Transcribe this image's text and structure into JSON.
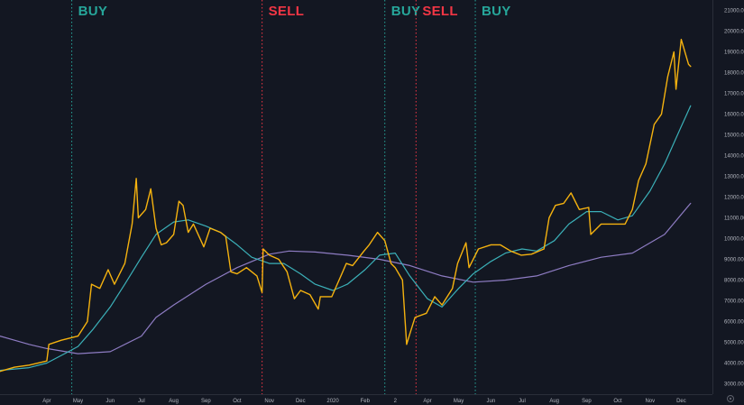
{
  "chart_data": {
    "type": "line",
    "title": "",
    "xlabel": "",
    "ylabel": "",
    "x_range": [
      "2019-02-15",
      "2020-12-31"
    ],
    "ylim": [
      2500,
      21500
    ],
    "y_ticks": [
      "3000.00",
      "4000.00",
      "5000.00",
      "6000.00",
      "7000.00",
      "8000.00",
      "9000.00",
      "10000.00",
      "11000.00",
      "12000.00",
      "13000.00",
      "14000.00",
      "15000.00",
      "16000.00",
      "17000.00",
      "18000.00",
      "19000.00",
      "20000.00",
      "21000.00"
    ],
    "x_ticks": [
      {
        "label": "Apr",
        "date": "2019-04-01"
      },
      {
        "label": "May",
        "date": "2019-05-01"
      },
      {
        "label": "Jun",
        "date": "2019-06-01"
      },
      {
        "label": "Jul",
        "date": "2019-07-01"
      },
      {
        "label": "Aug",
        "date": "2019-08-01"
      },
      {
        "label": "Sep",
        "date": "2019-09-01"
      },
      {
        "label": "Oct",
        "date": "2019-10-01"
      },
      {
        "label": "Nov",
        "date": "2019-11-01"
      },
      {
        "label": "Dec",
        "date": "2019-12-01"
      },
      {
        "label": "2020",
        "date": "2020-01-01"
      },
      {
        "label": "Feb",
        "date": "2020-02-01"
      },
      {
        "label": "2",
        "date": "2020-03-01"
      },
      {
        "label": "Apr",
        "date": "2020-04-01"
      },
      {
        "label": "May",
        "date": "2020-05-01"
      },
      {
        "label": "Jun",
        "date": "2020-06-01"
      },
      {
        "label": "Jul",
        "date": "2020-07-01"
      },
      {
        "label": "Aug",
        "date": "2020-08-01"
      },
      {
        "label": "Sep",
        "date": "2020-09-01"
      },
      {
        "label": "Oct",
        "date": "2020-10-01"
      },
      {
        "label": "Nov",
        "date": "2020-11-01"
      },
      {
        "label": "Dec",
        "date": "2020-12-01"
      }
    ],
    "grid": false,
    "legend": "none",
    "signals": [
      {
        "label": "BUY",
        "date": "2019-04-25",
        "color": "#26a69a"
      },
      {
        "label": "SELL",
        "date": "2019-10-25",
        "color": "#f23645"
      },
      {
        "label": "BUY",
        "date": "2020-02-20",
        "color": "#26a69a"
      },
      {
        "label": "SELL",
        "date": "2020-03-21",
        "color": "#f23645"
      },
      {
        "label": "BUY",
        "date": "2020-05-17",
        "color": "#26a69a"
      }
    ],
    "series": [
      {
        "color": "#f5b20f",
        "points": [
          [
            "2019-02-15",
            3600
          ],
          [
            "2019-03-01",
            3800
          ],
          [
            "2019-03-15",
            3900
          ],
          [
            "2019-04-01",
            4100
          ],
          [
            "2019-04-03",
            4900
          ],
          [
            "2019-04-15",
            5100
          ],
          [
            "2019-05-01",
            5300
          ],
          [
            "2019-05-10",
            6000
          ],
          [
            "2019-05-14",
            7800
          ],
          [
            "2019-05-22",
            7600
          ],
          [
            "2019-05-30",
            8500
          ],
          [
            "2019-06-05",
            7800
          ],
          [
            "2019-06-15",
            8800
          ],
          [
            "2019-06-22",
            10700
          ],
          [
            "2019-06-26",
            12900
          ],
          [
            "2019-06-28",
            11000
          ],
          [
            "2019-07-05",
            11400
          ],
          [
            "2019-07-10",
            12400
          ],
          [
            "2019-07-15",
            10500
          ],
          [
            "2019-07-20",
            9700
          ],
          [
            "2019-07-25",
            9800
          ],
          [
            "2019-08-01",
            10200
          ],
          [
            "2019-08-06",
            11800
          ],
          [
            "2019-08-10",
            11600
          ],
          [
            "2019-08-15",
            10300
          ],
          [
            "2019-08-20",
            10700
          ],
          [
            "2019-08-30",
            9600
          ],
          [
            "2019-09-05",
            10500
          ],
          [
            "2019-09-15",
            10300
          ],
          [
            "2019-09-20",
            10100
          ],
          [
            "2019-09-25",
            8400
          ],
          [
            "2019-10-01",
            8300
          ],
          [
            "2019-10-10",
            8600
          ],
          [
            "2019-10-20",
            8200
          ],
          [
            "2019-10-25",
            7400
          ],
          [
            "2019-10-26",
            9500
          ],
          [
            "2019-11-01",
            9200
          ],
          [
            "2019-11-10",
            9000
          ],
          [
            "2019-11-18",
            8400
          ],
          [
            "2019-11-25",
            7100
          ],
          [
            "2019-12-01",
            7500
          ],
          [
            "2019-12-10",
            7300
          ],
          [
            "2019-12-18",
            6600
          ],
          [
            "2019-12-20",
            7200
          ],
          [
            "2019-12-31",
            7200
          ],
          [
            "2020-01-07",
            8000
          ],
          [
            "2020-01-14",
            8800
          ],
          [
            "2020-01-20",
            8700
          ],
          [
            "2020-01-31",
            9400
          ],
          [
            "2020-02-05",
            9700
          ],
          [
            "2020-02-13",
            10300
          ],
          [
            "2020-02-20",
            9900
          ],
          [
            "2020-02-26",
            8800
          ],
          [
            "2020-03-01",
            8600
          ],
          [
            "2020-03-08",
            8000
          ],
          [
            "2020-03-12",
            4900
          ],
          [
            "2020-03-15",
            5400
          ],
          [
            "2020-03-20",
            6200
          ],
          [
            "2020-03-31",
            6400
          ],
          [
            "2020-04-08",
            7200
          ],
          [
            "2020-04-15",
            6800
          ],
          [
            "2020-04-25",
            7600
          ],
          [
            "2020-04-30",
            8800
          ],
          [
            "2020-05-08",
            9800
          ],
          [
            "2020-05-11",
            8600
          ],
          [
            "2020-05-20",
            9500
          ],
          [
            "2020-06-01",
            9700
          ],
          [
            "2020-06-10",
            9700
          ],
          [
            "2020-06-20",
            9400
          ],
          [
            "2020-06-30",
            9200
          ],
          [
            "2020-07-10",
            9250
          ],
          [
            "2020-07-22",
            9500
          ],
          [
            "2020-07-27",
            11000
          ],
          [
            "2020-08-02",
            11600
          ],
          [
            "2020-08-10",
            11700
          ],
          [
            "2020-08-17",
            12200
          ],
          [
            "2020-08-25",
            11400
          ],
          [
            "2020-09-03",
            11500
          ],
          [
            "2020-09-05",
            10200
          ],
          [
            "2020-09-15",
            10700
          ],
          [
            "2020-09-25",
            10700
          ],
          [
            "2020-10-08",
            10700
          ],
          [
            "2020-10-15",
            11400
          ],
          [
            "2020-10-21",
            12800
          ],
          [
            "2020-10-28",
            13600
          ],
          [
            "2020-11-05",
            15500
          ],
          [
            "2020-11-12",
            16000
          ],
          [
            "2020-11-18",
            17800
          ],
          [
            "2020-11-24",
            19000
          ],
          [
            "2020-11-26",
            17200
          ],
          [
            "2020-12-01",
            19600
          ],
          [
            "2020-12-08",
            18400
          ],
          [
            "2020-12-10",
            18300
          ]
        ]
      },
      {
        "color": "#3bb0b8",
        "points": [
          [
            "2019-02-15",
            3650
          ],
          [
            "2019-03-15",
            3780
          ],
          [
            "2019-04-01",
            4000
          ],
          [
            "2019-04-20",
            4500
          ],
          [
            "2019-05-01",
            4800
          ],
          [
            "2019-05-15",
            5600
          ],
          [
            "2019-06-01",
            6700
          ],
          [
            "2019-06-15",
            7800
          ],
          [
            "2019-07-01",
            9100
          ],
          [
            "2019-07-15",
            10200
          ],
          [
            "2019-08-01",
            10800
          ],
          [
            "2019-08-15",
            10900
          ],
          [
            "2019-09-01",
            10600
          ],
          [
            "2019-09-15",
            10300
          ],
          [
            "2019-10-01",
            9700
          ],
          [
            "2019-10-15",
            9100
          ],
          [
            "2019-11-01",
            8800
          ],
          [
            "2019-11-15",
            8800
          ],
          [
            "2019-12-01",
            8300
          ],
          [
            "2019-12-15",
            7800
          ],
          [
            "2020-01-01",
            7500
          ],
          [
            "2020-01-15",
            7800
          ],
          [
            "2020-02-01",
            8500
          ],
          [
            "2020-02-15",
            9200
          ],
          [
            "2020-03-01",
            9300
          ],
          [
            "2020-03-15",
            8200
          ],
          [
            "2020-04-01",
            7100
          ],
          [
            "2020-04-15",
            6700
          ],
          [
            "2020-05-01",
            7600
          ],
          [
            "2020-05-15",
            8300
          ],
          [
            "2020-06-01",
            8900
          ],
          [
            "2020-06-15",
            9300
          ],
          [
            "2020-07-01",
            9500
          ],
          [
            "2020-07-15",
            9400
          ],
          [
            "2020-08-01",
            9900
          ],
          [
            "2020-08-15",
            10700
          ],
          [
            "2020-09-01",
            11300
          ],
          [
            "2020-09-15",
            11300
          ],
          [
            "2020-10-01",
            10900
          ],
          [
            "2020-10-15",
            11100
          ],
          [
            "2020-11-01",
            12300
          ],
          [
            "2020-11-15",
            13600
          ],
          [
            "2020-12-01",
            15400
          ],
          [
            "2020-12-10",
            16400
          ]
        ]
      },
      {
        "color": "#8e7cc3",
        "points": [
          [
            "2019-02-15",
            5300
          ],
          [
            "2019-03-01",
            5100
          ],
          [
            "2019-03-15",
            4900
          ],
          [
            "2019-04-01",
            4700
          ],
          [
            "2019-05-01",
            4450
          ],
          [
            "2019-06-01",
            4550
          ],
          [
            "2019-07-01",
            5300
          ],
          [
            "2019-07-15",
            6200
          ],
          [
            "2019-08-01",
            6800
          ],
          [
            "2019-09-01",
            7800
          ],
          [
            "2019-10-01",
            8600
          ],
          [
            "2019-11-01",
            9250
          ],
          [
            "2019-11-20",
            9400
          ],
          [
            "2019-12-15",
            9350
          ],
          [
            "2020-01-15",
            9200
          ],
          [
            "2020-02-15",
            9000
          ],
          [
            "2020-03-15",
            8700
          ],
          [
            "2020-04-15",
            8200
          ],
          [
            "2020-05-15",
            7900
          ],
          [
            "2020-06-15",
            8000
          ],
          [
            "2020-07-15",
            8200
          ],
          [
            "2020-08-15",
            8700
          ],
          [
            "2020-09-15",
            9100
          ],
          [
            "2020-10-15",
            9300
          ],
          [
            "2020-11-15",
            10200
          ],
          [
            "2020-12-10",
            11700
          ]
        ]
      }
    ]
  }
}
